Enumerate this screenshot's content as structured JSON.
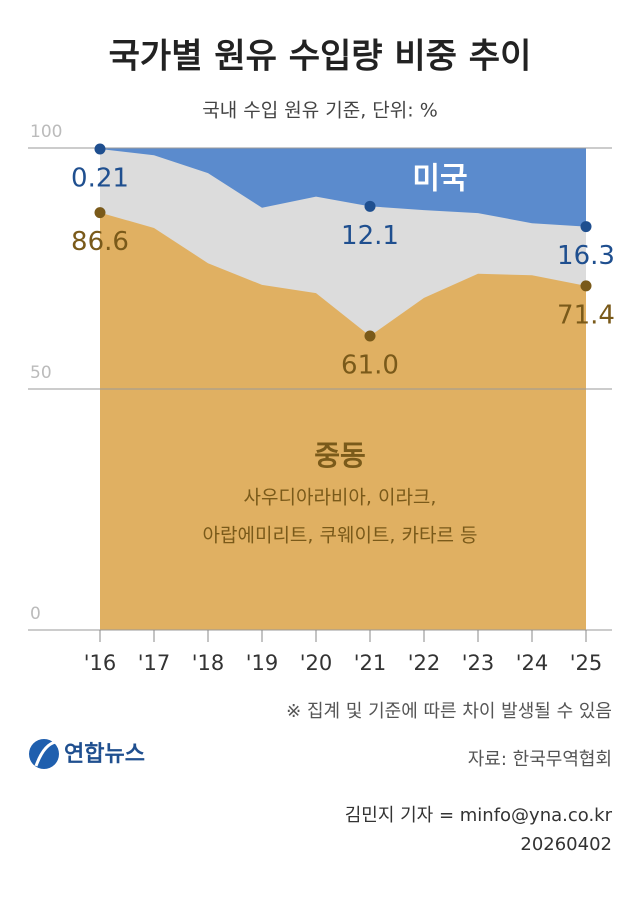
{
  "chart_data": {
    "type": "stacked-area",
    "title": "국가별 원유 수입량 비중 추이",
    "subtitle": "국내 수입 원유 기준, 단위: %",
    "categories": [
      "'16",
      "'17",
      "'18",
      "'19",
      "'20",
      "'21",
      "'22",
      "'23",
      "'24",
      "'25"
    ],
    "series": [
      {
        "name": "중동",
        "color": "#e0b062",
        "label_color": "#7a5a1a",
        "note": [
          "사우디아라비아, 이라크,",
          "아랍에미리트, 쿠웨이트, 카타르 등"
        ],
        "values": [
          86.6,
          83.4,
          76.1,
          71.6,
          69.9,
          61.0,
          68.9,
          73.9,
          73.6,
          71.4
        ],
        "value_labels": [
          "86.6",
          null,
          null,
          null,
          null,
          "61.0",
          null,
          null,
          null,
          "71.4"
        ]
      },
      {
        "name": "미국",
        "color": "#5b8bcd",
        "label_color": "#1f4f8f",
        "stack_from": "top",
        "values": [
          0.21,
          1.5,
          5.2,
          12.4,
          10.1,
          12.1,
          12.9,
          13.5,
          15.6,
          16.3
        ],
        "value_labels": [
          "0.21",
          null,
          null,
          null,
          null,
          "12.1",
          null,
          null,
          null,
          "16.3"
        ]
      }
    ],
    "other_color": "#dcdcdc",
    "ylim": [
      0,
      100
    ],
    "yticks": [
      0,
      50,
      100
    ],
    "grid": true
  },
  "footer": {
    "note": "※ 집계 및 기준에 따른 차이 발생될 수 있음",
    "logo": "연합뉴스",
    "source": "자료: 한국무역협회",
    "credit": "김민지 기자 = minfo@yna.co.kr",
    "date": "20260402"
  }
}
